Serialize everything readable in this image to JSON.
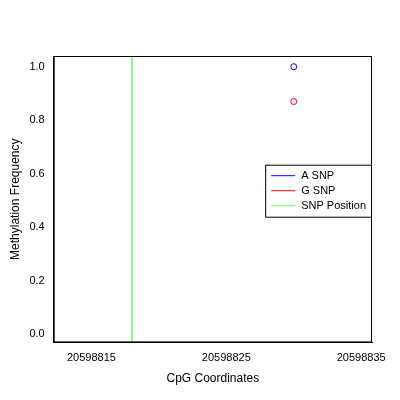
{
  "chart_data": {
    "type": "scatter",
    "xlabel": "CpG Coordinates",
    "ylabel": "Methylation Frequency",
    "x": [
      20598830
    ],
    "series": [
      {
        "name": "A SNP",
        "color": "#0000ff",
        "marker": "circle",
        "values": [
          1.0
        ]
      },
      {
        "name": "G SNP",
        "color": "#ff0000",
        "marker": "circle",
        "values": [
          0.87
        ]
      }
    ],
    "snp_position": {
      "name": "SNP Position",
      "color": "#66ff66",
      "x": 20598818
    },
    "xlim": [
      20598812.2,
      20598835.8
    ],
    "xticks": [
      20598815,
      20598825,
      20598835
    ],
    "ylim": [
      -0.03,
      1.04
    ],
    "yticks": [
      {
        "value": 0,
        "label": "0.0"
      },
      {
        "value": 0.2,
        "label": "0.2"
      },
      {
        "value": 0.4,
        "label": "0.4"
      },
      {
        "value": 0.6,
        "label": "0.6"
      },
      {
        "value": 0.8,
        "label": "0.8"
      },
      {
        "value": 1.0,
        "label": "1.0"
      }
    ],
    "legend": "right",
    "grid": false
  }
}
